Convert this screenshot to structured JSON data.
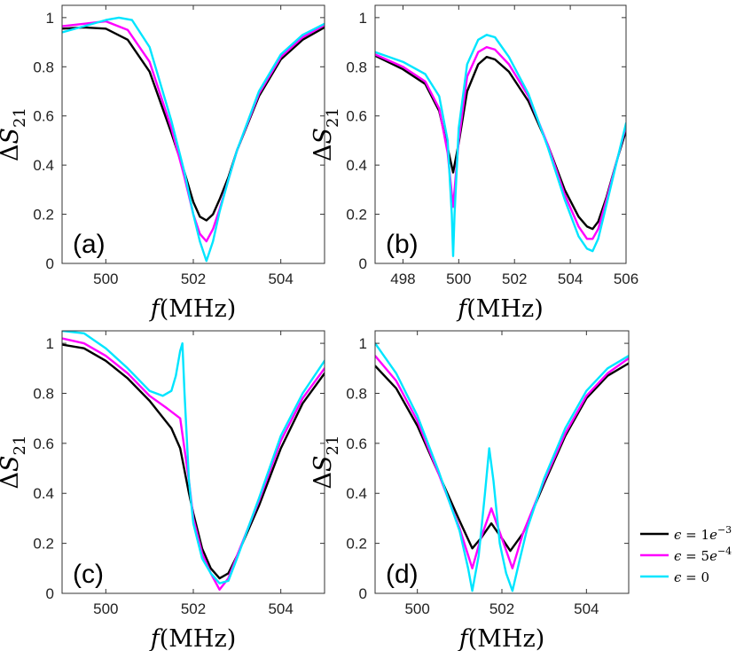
{
  "colors": {
    "eps_1e-3": "#000000",
    "eps_5e-4": "#ff00ff",
    "eps_0": "#00e5ff"
  },
  "legend": [
    {
      "key": "eps_1e-3",
      "sym": "ϵ",
      "eq": " = 1",
      "base": "e",
      "exp": "−3"
    },
    {
      "key": "eps_5e-4",
      "sym": "ϵ",
      "eq": " = 5",
      "base": "e",
      "exp": "−4"
    },
    {
      "key": "eps_0",
      "sym": "ϵ",
      "eq": " = 0",
      "base": "",
      "exp": ""
    }
  ],
  "chart_data": [
    {
      "type": "line",
      "panel_label": "(a)",
      "xlabel": {
        "var": "f",
        "unit": "(MHz)"
      },
      "ylabel": {
        "prefix": "Δ",
        "var": "S",
        "sub": "21"
      },
      "xlim": [
        499,
        505
      ],
      "ylim": [
        0,
        1.05
      ],
      "xticks": [
        500,
        502,
        504
      ],
      "yticks": [
        0,
        0.2,
        0.4,
        0.6,
        0.8,
        1
      ],
      "series": [
        {
          "key": "eps_1e-3",
          "x": [
            499,
            499.5,
            500,
            500.5,
            501,
            501.5,
            501.8,
            502,
            502.15,
            502.3,
            502.45,
            502.6,
            502.8,
            503,
            503.5,
            504,
            504.5,
            505
          ],
          "y": [
            0.955,
            0.96,
            0.955,
            0.91,
            0.78,
            0.53,
            0.37,
            0.25,
            0.19,
            0.175,
            0.2,
            0.26,
            0.35,
            0.46,
            0.68,
            0.83,
            0.91,
            0.96
          ]
        },
        {
          "key": "eps_5e-4",
          "x": [
            499,
            499.5,
            500,
            500.5,
            501,
            501.5,
            501.8,
            502,
            502.15,
            502.3,
            502.45,
            502.6,
            502.8,
            503,
            503.5,
            504,
            504.5,
            505
          ],
          "y": [
            0.965,
            0.975,
            0.985,
            0.95,
            0.82,
            0.55,
            0.35,
            0.2,
            0.12,
            0.09,
            0.14,
            0.22,
            0.34,
            0.46,
            0.69,
            0.84,
            0.92,
            0.97
          ]
        },
        {
          "key": "eps_0",
          "x": [
            499,
            499.5,
            500,
            500.3,
            500.6,
            501,
            501.5,
            501.8,
            502,
            502.15,
            502.3,
            502.45,
            502.6,
            502.8,
            503,
            503.5,
            504,
            504.5,
            505
          ],
          "y": [
            0.94,
            0.965,
            0.99,
            1.0,
            0.99,
            0.88,
            0.58,
            0.37,
            0.2,
            0.09,
            0.01,
            0.09,
            0.21,
            0.34,
            0.46,
            0.7,
            0.85,
            0.93,
            0.975
          ]
        }
      ]
    },
    {
      "type": "line",
      "panel_label": "(b)",
      "xlabel": {
        "var": "f",
        "unit": "(MHz)"
      },
      "ylabel": {
        "prefix": "Δ",
        "var": "S",
        "sub": "21"
      },
      "xlim": [
        497,
        506
      ],
      "ylim": [
        0,
        1.05
      ],
      "xticks": [
        498,
        500,
        502,
        504,
        506
      ],
      "yticks": [
        0,
        0.2,
        0.4,
        0.6,
        0.8,
        1
      ],
      "series": [
        {
          "key": "eps_1e-3",
          "x": [
            497,
            498,
            498.8,
            499.3,
            499.6,
            499.8,
            500,
            500.3,
            500.7,
            501,
            501.3,
            501.8,
            502.5,
            503.2,
            503.8,
            504.3,
            504.6,
            504.8,
            505,
            505.3,
            505.7,
            506
          ],
          "y": [
            0.845,
            0.79,
            0.73,
            0.62,
            0.47,
            0.37,
            0.49,
            0.7,
            0.81,
            0.84,
            0.83,
            0.78,
            0.66,
            0.48,
            0.3,
            0.19,
            0.15,
            0.14,
            0.17,
            0.27,
            0.43,
            0.54
          ]
        },
        {
          "key": "eps_5e-4",
          "x": [
            497,
            498,
            498.8,
            499.3,
            499.6,
            499.8,
            500,
            500.3,
            500.7,
            501,
            501.3,
            501.8,
            502.5,
            503.2,
            503.8,
            504.3,
            504.6,
            504.8,
            505,
            505.3,
            505.7,
            506
          ],
          "y": [
            0.85,
            0.8,
            0.74,
            0.63,
            0.45,
            0.23,
            0.5,
            0.76,
            0.86,
            0.88,
            0.87,
            0.81,
            0.68,
            0.48,
            0.28,
            0.15,
            0.1,
            0.1,
            0.14,
            0.26,
            0.43,
            0.56
          ]
        },
        {
          "key": "eps_0",
          "x": [
            497,
            498,
            498.8,
            499.3,
            499.6,
            499.75,
            499.8,
            499.85,
            500,
            500.3,
            500.7,
            501,
            501.3,
            501.8,
            502.5,
            503.2,
            503.8,
            504.3,
            504.6,
            504.8,
            505,
            505.3,
            505.7,
            506
          ],
          "y": [
            0.86,
            0.82,
            0.77,
            0.68,
            0.5,
            0.2,
            0.03,
            0.2,
            0.55,
            0.81,
            0.91,
            0.93,
            0.92,
            0.84,
            0.69,
            0.47,
            0.26,
            0.11,
            0.06,
            0.05,
            0.1,
            0.24,
            0.43,
            0.57
          ]
        }
      ]
    },
    {
      "type": "line",
      "panel_label": "(c)",
      "xlabel": {
        "var": "f",
        "unit": "(MHz)"
      },
      "ylabel": {
        "prefix": "Δ",
        "var": "S",
        "sub": "21"
      },
      "xlim": [
        499,
        505
      ],
      "ylim": [
        0,
        1.05
      ],
      "xticks": [
        500,
        502,
        504
      ],
      "yticks": [
        0,
        0.2,
        0.4,
        0.6,
        0.8,
        1
      ],
      "series": [
        {
          "key": "eps_1e-3",
          "x": [
            499,
            499.5,
            500,
            500.5,
            501,
            501.5,
            501.7,
            501.9,
            502,
            502.2,
            502.4,
            502.6,
            502.8,
            503,
            503.5,
            504,
            504.5,
            505
          ],
          "y": [
            0.995,
            0.98,
            0.93,
            0.86,
            0.77,
            0.66,
            0.58,
            0.4,
            0.32,
            0.18,
            0.1,
            0.06,
            0.08,
            0.15,
            0.35,
            0.58,
            0.76,
            0.88
          ]
        },
        {
          "key": "eps_5e-4",
          "x": [
            499,
            499.5,
            500,
            500.5,
            501,
            501.4,
            501.7,
            501.9,
            502,
            502.2,
            502.4,
            502.6,
            502.8,
            503,
            503.5,
            504,
            504.5,
            505
          ],
          "y": [
            1.02,
            1.0,
            0.95,
            0.88,
            0.79,
            0.74,
            0.7,
            0.45,
            0.3,
            0.16,
            0.08,
            0.015,
            0.06,
            0.15,
            0.37,
            0.61,
            0.78,
            0.9
          ]
        },
        {
          "key": "eps_0",
          "x": [
            499,
            499.5,
            500,
            500.5,
            501,
            501.3,
            501.5,
            501.6,
            501.7,
            501.75,
            501.8,
            501.9,
            502,
            502.2,
            502.4,
            502.6,
            502.8,
            503,
            503.5,
            504,
            504.5,
            505
          ],
          "y": [
            1.05,
            1.04,
            0.98,
            0.9,
            0.81,
            0.79,
            0.81,
            0.87,
            0.97,
            1.0,
            0.8,
            0.45,
            0.28,
            0.14,
            0.08,
            0.04,
            0.05,
            0.14,
            0.38,
            0.63,
            0.8,
            0.93
          ]
        }
      ]
    },
    {
      "type": "line",
      "panel_label": "(d)",
      "xlabel": {
        "var": "f",
        "unit": "(MHz)"
      },
      "ylabel": {
        "prefix": "Δ",
        "var": "S",
        "sub": "21"
      },
      "xlim": [
        499,
        505
      ],
      "ylim": [
        0,
        1.05
      ],
      "xticks": [
        500,
        502,
        504
      ],
      "yticks": [
        0,
        0.2,
        0.4,
        0.6,
        0.8,
        1
      ],
      "series": [
        {
          "key": "eps_1e-3",
          "x": [
            499,
            499.5,
            500,
            500.5,
            501,
            501.3,
            501.5,
            501.75,
            502,
            502.2,
            502.5,
            503,
            503.5,
            504,
            504.5,
            505
          ],
          "y": [
            0.91,
            0.82,
            0.67,
            0.48,
            0.29,
            0.18,
            0.22,
            0.28,
            0.22,
            0.17,
            0.24,
            0.44,
            0.63,
            0.78,
            0.87,
            0.92
          ]
        },
        {
          "key": "eps_5e-4",
          "x": [
            499,
            499.5,
            500,
            500.5,
            501,
            501.3,
            501.5,
            501.75,
            502,
            502.25,
            502.5,
            503,
            503.5,
            504,
            504.5,
            505
          ],
          "y": [
            0.95,
            0.85,
            0.69,
            0.48,
            0.26,
            0.1,
            0.22,
            0.34,
            0.22,
            0.1,
            0.24,
            0.45,
            0.64,
            0.79,
            0.88,
            0.94
          ]
        },
        {
          "key": "eps_0",
          "x": [
            499,
            499.5,
            500,
            500.5,
            501,
            501.2,
            501.3,
            501.45,
            501.6,
            501.7,
            501.8,
            501.95,
            502.1,
            502.25,
            502.4,
            502.6,
            503,
            503.5,
            504,
            504.5,
            505
          ],
          "y": [
            1.0,
            0.88,
            0.71,
            0.49,
            0.25,
            0.1,
            0.01,
            0.15,
            0.4,
            0.58,
            0.45,
            0.2,
            0.08,
            0.01,
            0.12,
            0.26,
            0.46,
            0.66,
            0.81,
            0.9,
            0.95
          ]
        }
      ]
    }
  ]
}
